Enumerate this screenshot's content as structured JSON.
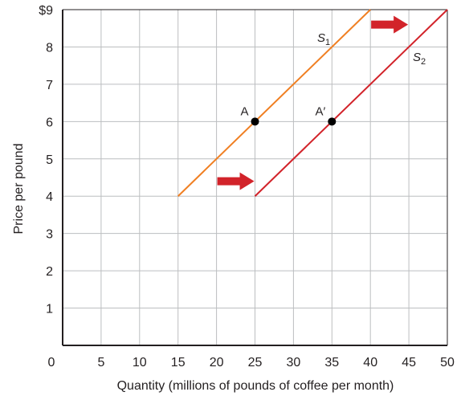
{
  "chart_data": {
    "type": "line",
    "xlabel": "Quantity (millions of pounds of coffee per month)",
    "ylabel": "Price per pound",
    "xlim": [
      0,
      50
    ],
    "ylim": [
      0,
      9
    ],
    "x_ticks": [
      0,
      5,
      10,
      15,
      20,
      25,
      30,
      35,
      40,
      45,
      50
    ],
    "y_ticks": [
      1,
      2,
      3,
      4,
      5,
      6,
      7,
      8,
      9
    ],
    "x_tick_labels": [
      "0",
      "5",
      "10",
      "15",
      "20",
      "25",
      "30",
      "35",
      "40",
      "45",
      "50"
    ],
    "y_tick_labels": [
      "1",
      "2",
      "3",
      "4",
      "5",
      "6",
      "7",
      "8",
      "$9"
    ],
    "grid": true,
    "series": [
      {
        "name": "S1",
        "label_main": "S",
        "label_sub": "1",
        "color": "#f07f22",
        "points": [
          [
            15,
            4
          ],
          [
            40,
            9
          ]
        ]
      },
      {
        "name": "S2",
        "label_main": "S",
        "label_sub": "2",
        "color": "#d2232a",
        "points": [
          [
            25,
            4
          ],
          [
            50,
            9
          ]
        ]
      }
    ],
    "points": [
      {
        "label": "A",
        "x": 25,
        "y": 6
      },
      {
        "label": "A′",
        "x": 35,
        "y": 6
      }
    ],
    "arrows": [
      {
        "x": 22.5,
        "y": 4.4,
        "direction": "right",
        "color": "#d2232a"
      },
      {
        "x": 42.5,
        "y": 8.6,
        "direction": "right",
        "color": "#d2232a"
      }
    ]
  }
}
